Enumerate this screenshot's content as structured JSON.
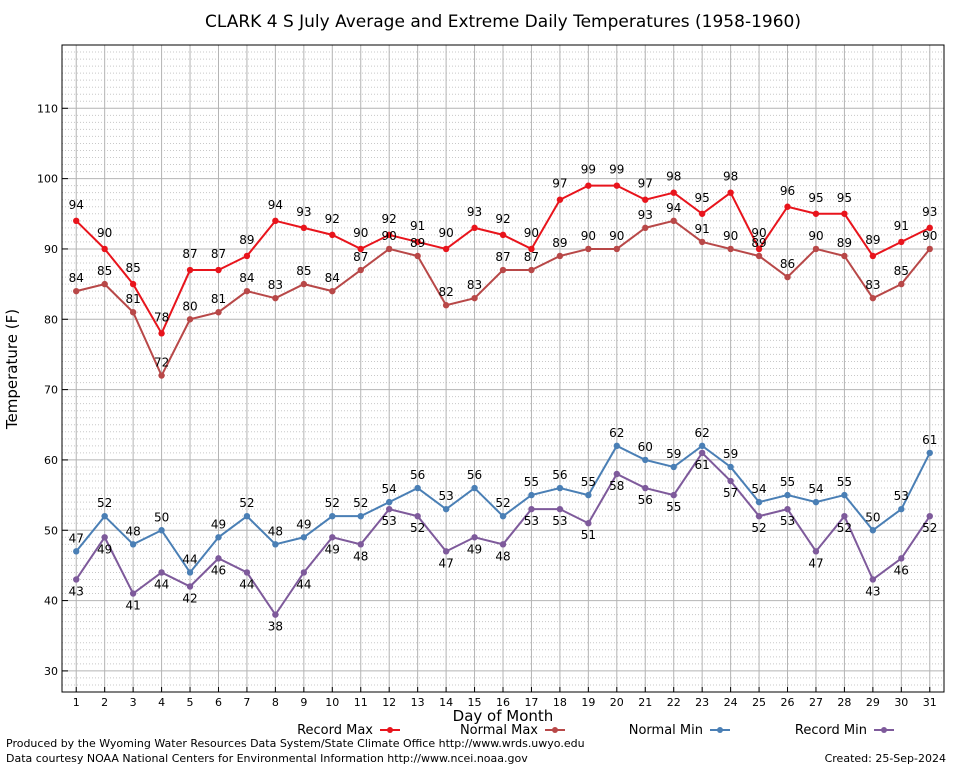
{
  "chart_data": {
    "type": "line",
    "title": "CLARK 4 S July Average and Extreme Daily Temperatures (1958-1960)",
    "xlabel": "Day of Month",
    "ylabel": "Temperature (F)",
    "xlim": [
      0.5,
      31.5
    ],
    "ylim": [
      27,
      119
    ],
    "y_ticks": [
      30,
      40,
      50,
      60,
      70,
      80,
      90,
      100,
      110
    ],
    "x": [
      1,
      2,
      3,
      4,
      5,
      6,
      7,
      8,
      9,
      10,
      11,
      12,
      13,
      14,
      15,
      16,
      17,
      18,
      19,
      20,
      21,
      22,
      23,
      24,
      25,
      26,
      27,
      28,
      29,
      30,
      31
    ],
    "grid": true,
    "legend_position": "bottom",
    "series": [
      {
        "name": "Record Max",
        "color": "#e8141c",
        "values": [
          94,
          90,
          85,
          78,
          87,
          87,
          89,
          94,
          93,
          92,
          90,
          92,
          91,
          90,
          93,
          92,
          90,
          97,
          99,
          99,
          97,
          98,
          95,
          98,
          90,
          96,
          95,
          95,
          89,
          91,
          93
        ]
      },
      {
        "name": "Normal Max",
        "color": "#b84848",
        "values": [
          84,
          85,
          81,
          72,
          80,
          81,
          84,
          83,
          85,
          84,
          87,
          90,
          89,
          82,
          83,
          87,
          87,
          89,
          90,
          90,
          93,
          94,
          91,
          90,
          89,
          86,
          90,
          89,
          83,
          85,
          90
        ]
      },
      {
        "name": "Normal Min",
        "color": "#4a7fb5",
        "values": [
          47,
          52,
          48,
          50,
          44,
          49,
          52,
          48,
          49,
          52,
          52,
          54,
          56,
          53,
          56,
          52,
          55,
          56,
          55,
          62,
          60,
          59,
          62,
          59,
          54,
          55,
          54,
          55,
          50,
          53,
          61
        ]
      },
      {
        "name": "Record Min",
        "color": "#7e5a9b",
        "values": [
          43,
          49,
          41,
          44,
          42,
          46,
          44,
          38,
          44,
          49,
          48,
          53,
          52,
          47,
          49,
          48,
          53,
          53,
          51,
          58,
          56,
          55,
          61,
          57,
          52,
          53,
          47,
          52,
          43,
          46,
          52
        ]
      }
    ]
  },
  "footer": {
    "produced_by": "Produced by the Wyoming Water Resources Data System/State Climate Office http://www.wrds.uwyo.edu",
    "courtesy": "Data courtesy NOAA National Centers for Environmental Information http://www.ncei.noaa.gov",
    "created": "Created: 25-Sep-2024"
  }
}
